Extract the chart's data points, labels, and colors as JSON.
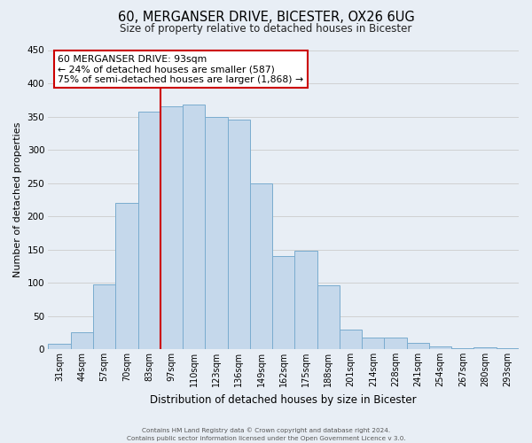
{
  "title": "60, MERGANSER DRIVE, BICESTER, OX26 6UG",
  "subtitle": "Size of property relative to detached houses in Bicester",
  "xlabel": "Distribution of detached houses by size in Bicester",
  "ylabel": "Number of detached properties",
  "categories": [
    "31sqm",
    "44sqm",
    "57sqm",
    "70sqm",
    "83sqm",
    "97sqm",
    "110sqm",
    "123sqm",
    "136sqm",
    "149sqm",
    "162sqm",
    "175sqm",
    "188sqm",
    "201sqm",
    "214sqm",
    "228sqm",
    "241sqm",
    "254sqm",
    "267sqm",
    "280sqm",
    "293sqm"
  ],
  "values": [
    8,
    25,
    98,
    220,
    358,
    365,
    368,
    350,
    345,
    250,
    140,
    148,
    96,
    30,
    18,
    18,
    10,
    4,
    2,
    3,
    2
  ],
  "bar_color": "#c5d8eb",
  "bar_edge_color": "#7aaccf",
  "red_line_color": "#cc0000",
  "annotation_line1": "60 MERGANSER DRIVE: 93sqm",
  "annotation_line2": "← 24% of detached houses are smaller (587)",
  "annotation_line3": "75% of semi-detached houses are larger (1,868) →",
  "annotation_box_facecolor": "#ffffff",
  "annotation_box_edgecolor": "#cc0000",
  "ylim": [
    0,
    450
  ],
  "yticks": [
    0,
    50,
    100,
    150,
    200,
    250,
    300,
    350,
    400,
    450
  ],
  "grid_color": "#cccccc",
  "bg_color": "#e8eef5",
  "footer1": "Contains HM Land Registry data © Crown copyright and database right 2024.",
  "footer2": "Contains public sector information licensed under the Open Government Licence v 3.0."
}
